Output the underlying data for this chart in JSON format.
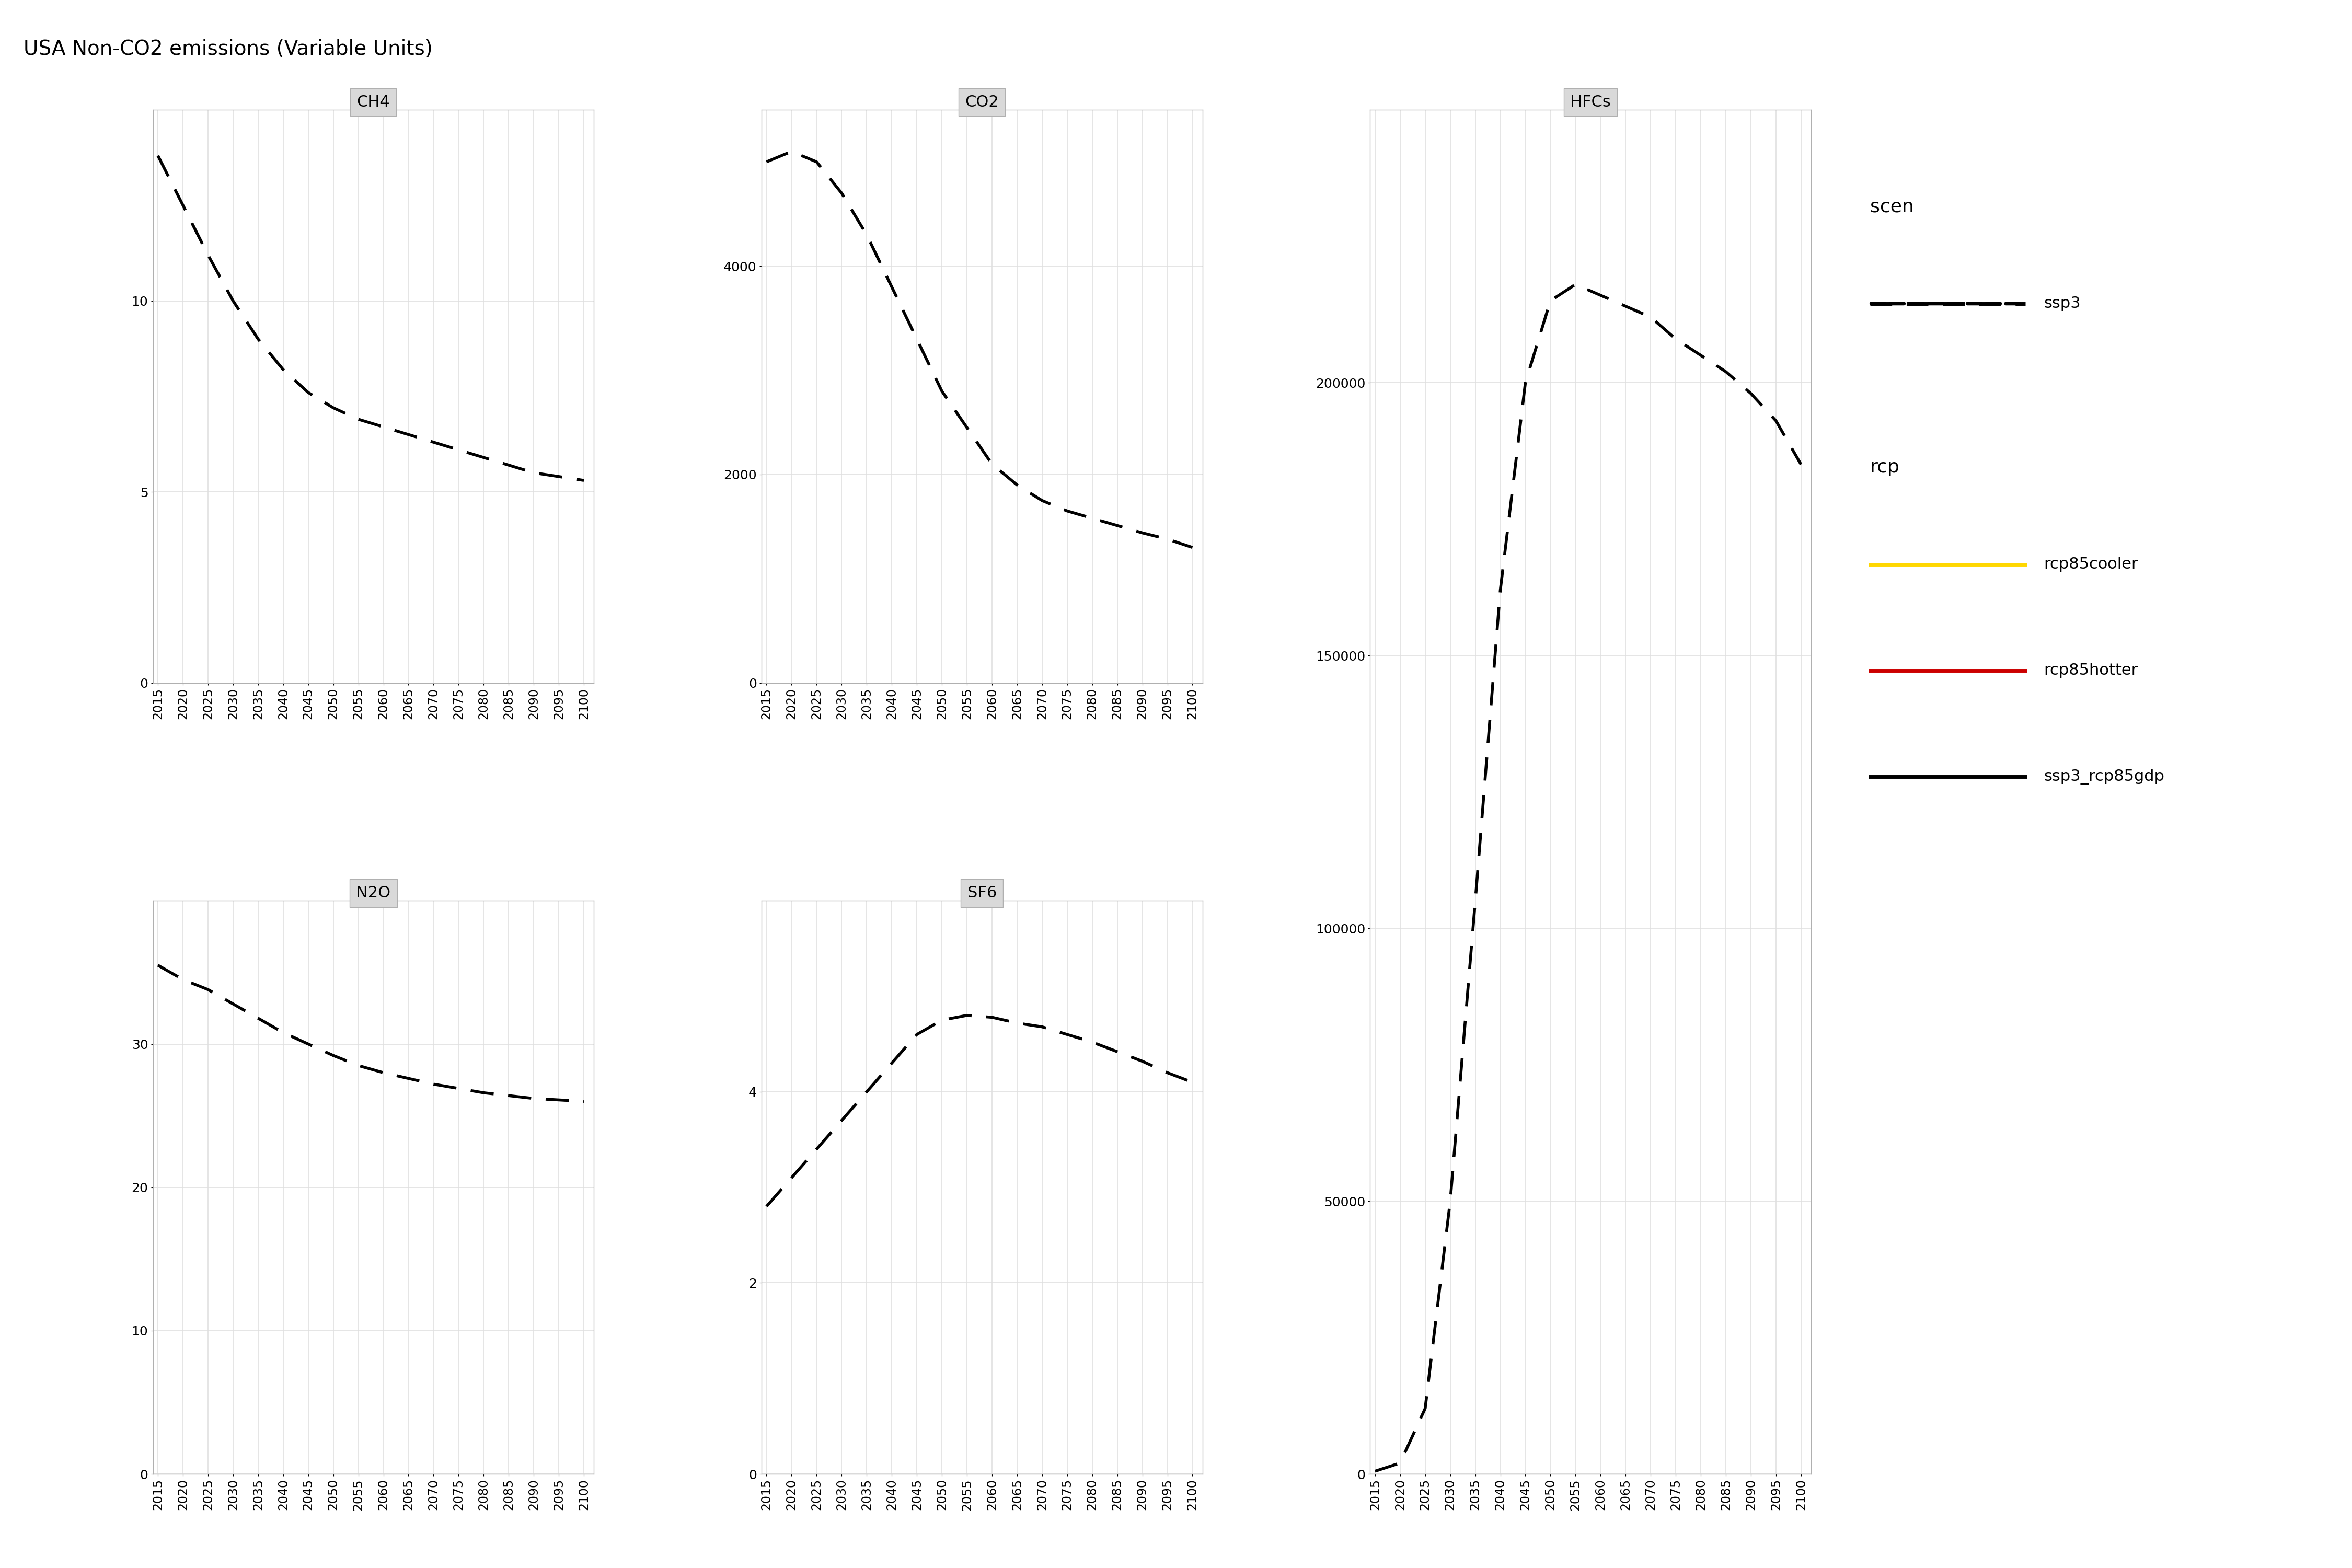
{
  "title": "USA Non-CO2 emissions (Variable Units)",
  "years": [
    2015,
    2020,
    2025,
    2030,
    2035,
    2040,
    2045,
    2050,
    2055,
    2060,
    2065,
    2070,
    2075,
    2080,
    2085,
    2090,
    2095,
    2100
  ],
  "panels": {
    "CH4": {
      "label": "CH4",
      "ylim": [
        0,
        15
      ],
      "yticks": [
        0,
        5,
        10
      ],
      "data": {
        "ssp3": [
          13.8,
          12.5,
          11.2,
          10.0,
          9.0,
          8.2,
          7.6,
          7.2,
          6.9,
          6.7,
          6.5,
          6.3,
          6.1,
          5.9,
          5.7,
          5.5,
          5.4,
          5.3
        ]
      }
    },
    "CO2": {
      "label": "CO2",
      "ylim": [
        0,
        5500
      ],
      "yticks": [
        0,
        2000,
        4000
      ],
      "data": {
        "ssp3": [
          5000,
          5100,
          5000,
          4700,
          4300,
          3800,
          3300,
          2800,
          2450,
          2100,
          1900,
          1750,
          1650,
          1580,
          1510,
          1440,
          1380,
          1300
        ]
      }
    },
    "HFCs": {
      "label": "HFCs",
      "ylim": [
        0,
        250000
      ],
      "yticks": [
        0,
        50000,
        100000,
        150000,
        200000
      ],
      "data": {
        "ssp3": [
          500,
          2000,
          12000,
          50000,
          105000,
          162000,
          200000,
          215000,
          218000,
          216000,
          214000,
          212000,
          208000,
          205000,
          202000,
          198000,
          193000,
          185000
        ]
      }
    },
    "N2O": {
      "label": "N2O",
      "ylim": [
        0,
        40
      ],
      "yticks": [
        0,
        10,
        20,
        30
      ],
      "data": {
        "ssp3": [
          35.5,
          34.5,
          33.8,
          32.8,
          31.8,
          30.8,
          30.0,
          29.2,
          28.5,
          28.0,
          27.6,
          27.2,
          26.9,
          26.6,
          26.4,
          26.2,
          26.1,
          26.0
        ]
      }
    },
    "SF6": {
      "label": "SF6",
      "ylim": [
        0,
        6
      ],
      "yticks": [
        0,
        2,
        4
      ],
      "data": {
        "ssp3": [
          2.8,
          3.1,
          3.4,
          3.7,
          4.0,
          4.3,
          4.6,
          4.75,
          4.8,
          4.78,
          4.72,
          4.68,
          4.6,
          4.52,
          4.42,
          4.32,
          4.2,
          4.1
        ]
      }
    }
  },
  "legend": {
    "scen_title": "scen",
    "scen_items": [
      {
        "label": "ssp3",
        "color": "#000000",
        "linestyle": "--"
      }
    ],
    "rcp_title": "rcp",
    "rcp_items": [
      {
        "label": "rcp85cooler",
        "color": "#FFD700"
      },
      {
        "label": "rcp85hotter",
        "color": "#CC0000"
      },
      {
        "label": "ssp3_rcp85gdp",
        "color": "#000000"
      }
    ]
  },
  "panel_bg": "#ffffff",
  "grid_color": "#e0e0e0",
  "strip_bg": "#d9d9d9",
  "strip_border": "#b0b0b0",
  "outer_border": "#888888"
}
